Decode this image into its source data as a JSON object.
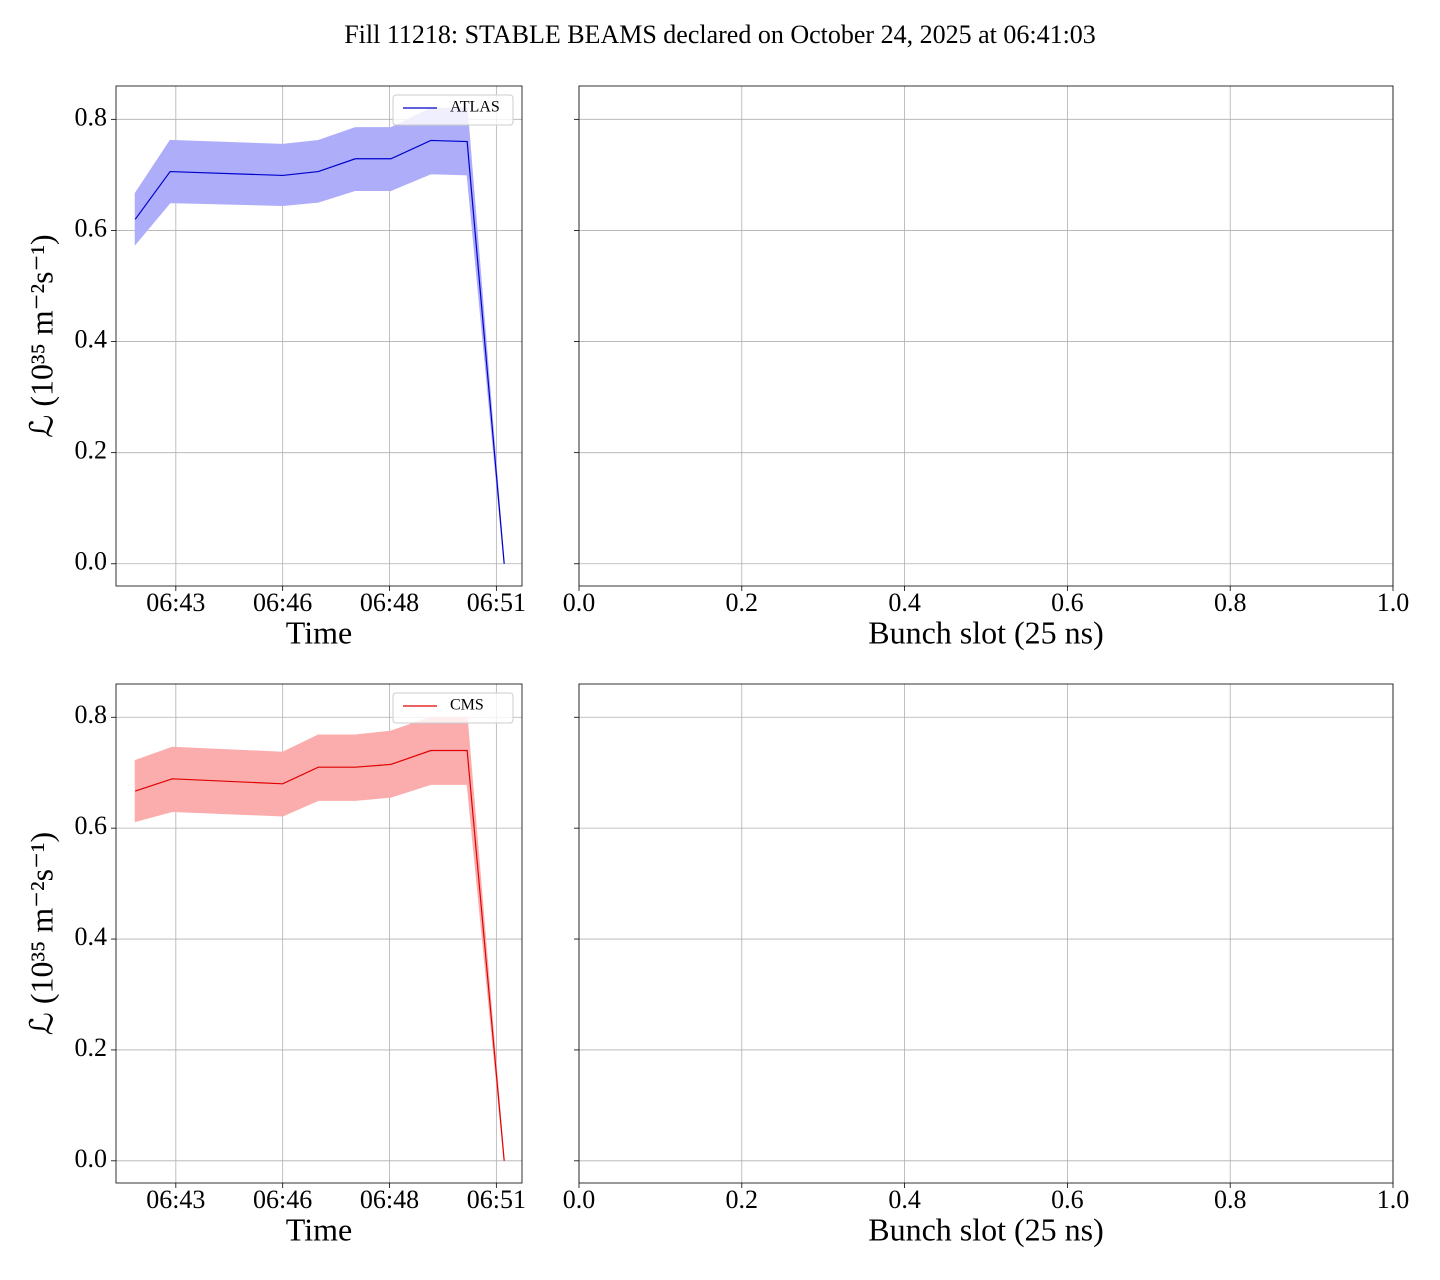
{
  "title": "Fill 11218: STABLE BEAMS declared on October 24, 2025 at 06:41:03",
  "chart_data": [
    {
      "type": "line",
      "xlabel": "Time",
      "ylabel": "ℒ (10³⁵ m⁻²s⁻¹)",
      "x": [
        "06:42:33",
        "06:43:22",
        "06:46:00",
        "06:46:50",
        "06:47:42",
        "06:48:32",
        "06:49:28",
        "06:50:19",
        "06:51:11"
      ],
      "series": [
        {
          "name": "ATLAS",
          "color": "#0000cc",
          "band_color": "#adadfa",
          "values": [
            0.62,
            0.706,
            0.699,
            0.706,
            0.729,
            0.729,
            0.762,
            0.76,
            0.0
          ],
          "lower": [
            0.575,
            0.65,
            0.645,
            0.651,
            0.672,
            0.672,
            0.702,
            0.7,
            0.0
          ],
          "upper": [
            0.667,
            0.762,
            0.755,
            0.762,
            0.785,
            0.785,
            0.82,
            0.82,
            0.0
          ]
        }
      ],
      "xlim": [
        "06:42:06",
        "06:51:36"
      ],
      "xticks": [
        {
          "value": "06:43:30",
          "label": "06:43"
        },
        {
          "value": "06:46:00",
          "label": "06:46"
        },
        {
          "value": "06:48:30",
          "label": "06:48"
        },
        {
          "value": "06:51:00",
          "label": "06:51"
        }
      ],
      "ylim": [
        -0.04,
        0.86
      ],
      "yticks": [
        {
          "value": 0,
          "label": "0.0"
        },
        {
          "value": 0.2,
          "label": "0.2"
        },
        {
          "value": 0.4,
          "label": "0.4"
        },
        {
          "value": 0.6,
          "label": "0.6"
        },
        {
          "value": 0.8,
          "label": "0.8"
        }
      ],
      "show_yticklabels": true,
      "grid": true,
      "legend": "upper right"
    },
    {
      "type": "line",
      "xlabel": "Bunch slot (25 ns)",
      "xlim": [
        0,
        1
      ],
      "xticks": [
        {
          "value": 0,
          "label": "0.0"
        },
        {
          "value": 0.2,
          "label": "0.2"
        },
        {
          "value": 0.4,
          "label": "0.4"
        },
        {
          "value": 0.6,
          "label": "0.6"
        },
        {
          "value": 0.8,
          "label": "0.8"
        },
        {
          "value": 1,
          "label": "1.0"
        }
      ],
      "ylim": [
        -0.04,
        0.86
      ],
      "yticks": [
        0,
        0.2,
        0.4,
        0.6,
        0.8
      ],
      "show_yticklabels": false,
      "grid": true
    },
    {
      "type": "line",
      "xlabel": "Time",
      "ylabel": "ℒ (10³⁵ m⁻²s⁻¹)",
      "x": [
        "06:42:33",
        "06:43:25",
        "06:46:00",
        "06:46:50",
        "06:47:42",
        "06:48:32",
        "06:49:28",
        "06:50:19",
        "06:51:11"
      ],
      "series": [
        {
          "name": "CMS",
          "color": "#e00000",
          "band_color": "#fbadad",
          "values": [
            0.667,
            0.689,
            0.68,
            0.71,
            0.71,
            0.715,
            0.74,
            0.74,
            0.0
          ],
          "lower": [
            0.612,
            0.63,
            0.622,
            0.65,
            0.65,
            0.656,
            0.679,
            0.679,
            0.0
          ],
          "upper": [
            0.722,
            0.746,
            0.737,
            0.768,
            0.768,
            0.775,
            0.8,
            0.8,
            0.0
          ]
        }
      ],
      "xlim": [
        "06:42:06",
        "06:51:36"
      ],
      "xticks": [
        {
          "value": "06:43:30",
          "label": "06:43"
        },
        {
          "value": "06:46:00",
          "label": "06:46"
        },
        {
          "value": "06:48:30",
          "label": "06:48"
        },
        {
          "value": "06:51:00",
          "label": "06:51"
        }
      ],
      "ylim": [
        -0.04,
        0.86
      ],
      "yticks": [
        {
          "value": 0,
          "label": "0.0"
        },
        {
          "value": 0.2,
          "label": "0.2"
        },
        {
          "value": 0.4,
          "label": "0.4"
        },
        {
          "value": 0.6,
          "label": "0.6"
        },
        {
          "value": 0.8,
          "label": "0.8"
        }
      ],
      "show_yticklabels": true,
      "grid": true,
      "legend": "upper right"
    },
    {
      "type": "line",
      "xlabel": "Bunch slot (25 ns)",
      "xlim": [
        0,
        1
      ],
      "xticks": [
        {
          "value": 0,
          "label": "0.0"
        },
        {
          "value": 0.2,
          "label": "0.2"
        },
        {
          "value": 0.4,
          "label": "0.4"
        },
        {
          "value": 0.6,
          "label": "0.6"
        },
        {
          "value": 0.8,
          "label": "0.8"
        },
        {
          "value": 1,
          "label": "1.0"
        }
      ],
      "ylim": [
        -0.04,
        0.86
      ],
      "yticks": [
        0,
        0.2,
        0.4,
        0.6,
        0.8
      ],
      "show_yticklabels": false,
      "grid": true
    }
  ]
}
